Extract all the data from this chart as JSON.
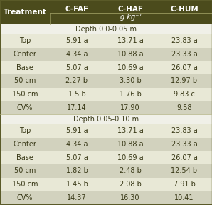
{
  "header_bg": "#4b4b1c",
  "header_text": "#ffffff",
  "col_headers": [
    "C-FAF",
    "C-HAF",
    "C-HUM"
  ],
  "sub_header": "g kg⁻¹",
  "treatment_label": "Treatment",
  "depth1_label": "Depth 0.0-0.05 m",
  "depth2_label": "Depth 0.05-0.10 m",
  "rows_depth1": [
    [
      "Top",
      "5.91 a",
      "13.71 a",
      "23.83 a"
    ],
    [
      "Center",
      "4.34 a",
      "10.88 a",
      "23.33 a"
    ],
    [
      "Base",
      "5.07 a",
      "10.69 a",
      "26.07 a"
    ],
    [
      "50 cm",
      "2.27 b",
      "3.30 b",
      "12.97 b"
    ],
    [
      "150 cm",
      "1.5 b",
      "1.76 b",
      "9.83 c"
    ],
    [
      "CV%",
      "17.14",
      "17.90",
      "9.58"
    ]
  ],
  "rows_depth2": [
    [
      "Top",
      "5.91 a",
      "13.71 a",
      "23.83 a"
    ],
    [
      "Center",
      "4.34 a",
      "10.88 a",
      "23.33 a"
    ],
    [
      "Base",
      "5.07 a",
      "10.69 a",
      "26.07 a"
    ],
    [
      "50 cm",
      "1.82 b",
      "2.48 b",
      "12.54 b"
    ],
    [
      "150 cm",
      "1.45 b",
      "2.08 b",
      "7.91 b"
    ],
    [
      "CV%",
      "14.37",
      "16.30",
      "10.41"
    ]
  ],
  "stripe_light": "#e8e8d6",
  "stripe_dark": "#d2d2be",
  "depth_row_bg": "#f0f0e8",
  "text_color": "#3a3a18",
  "font_size_header": 7.5,
  "font_size_body": 7.0,
  "font_size_depth": 7.0
}
